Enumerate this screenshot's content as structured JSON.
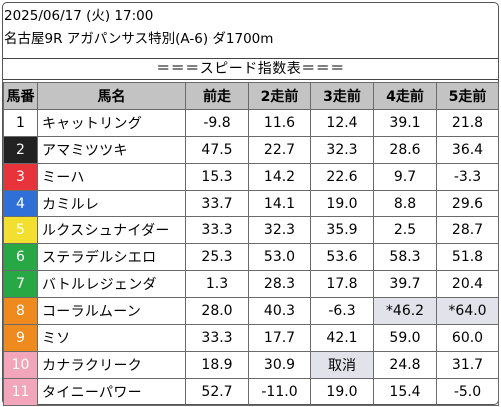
{
  "header": {
    "date_line": "2025/06/17 (火) 17:00",
    "race_line": "名古屋9R アガパンサス特別(A-6) ダ1700m",
    "banner": "＝＝＝スピード指数表＝＝＝"
  },
  "table": {
    "columns": [
      "馬番",
      "馬名",
      "前走",
      "2走前",
      "3走前",
      "4走前",
      "5走前"
    ],
    "rows": [
      {
        "num": "1",
        "name": "キャットリング",
        "r1": "-9.8",
        "r2": "11.6",
        "r3": "12.4",
        "r4": "39.1",
        "r5": "21.8"
      },
      {
        "num": "2",
        "name": "アマミツツキ",
        "r1": "47.5",
        "r2": "22.7",
        "r3": "32.3",
        "r4": "28.6",
        "r5": "36.4"
      },
      {
        "num": "3",
        "name": "ミーハ",
        "r1": "15.3",
        "r2": "14.2",
        "r3": "22.6",
        "r4": "9.7",
        "r5": "-3.3"
      },
      {
        "num": "4",
        "name": "カミルレ",
        "r1": "33.7",
        "r2": "14.1",
        "r3": "19.0",
        "r4": "8.8",
        "r5": "29.6"
      },
      {
        "num": "5",
        "name": "ルクスシュナイダー",
        "r1": "33.3",
        "r2": "32.3",
        "r3": "35.9",
        "r4": "2.5",
        "r5": "28.7"
      },
      {
        "num": "6",
        "name": "ステラデルシエロ",
        "r1": "25.3",
        "r2": "53.0",
        "r3": "53.6",
        "r4": "58.3",
        "r5": "51.8"
      },
      {
        "num": "7",
        "name": "バトルレジェンダ",
        "r1": "1.3",
        "r2": "28.3",
        "r3": "17.8",
        "r4": "39.7",
        "r5": "20.4"
      },
      {
        "num": "8",
        "name": "コーラルムーン",
        "r1": "28.0",
        "r2": "40.3",
        "r3": "-6.3",
        "r4": "*46.2",
        "r5": "*64.0"
      },
      {
        "num": "9",
        "name": "ミソ",
        "r1": "33.3",
        "r2": "17.7",
        "r3": "42.1",
        "r4": "59.0",
        "r5": "60.0"
      },
      {
        "num": "10",
        "name": "カナラクリーク",
        "r1": "18.9",
        "r2": "30.9",
        "r3": "取消",
        "r4": "24.8",
        "r5": "31.7"
      },
      {
        "num": "11",
        "name": "タイニーパワー",
        "r1": "52.7",
        "r2": "-11.0",
        "r3": "19.0",
        "r4": "15.4",
        "r5": "-5.0"
      }
    ]
  },
  "colors": {
    "header_bg": "#c3c3c3",
    "highlight_bg": "#e2e3ea",
    "waku": [
      "#ffffff",
      "#222222",
      "#e8333a",
      "#2f6fd8",
      "#f2df2e",
      "#27a844",
      "#ef8b1e",
      "#f3a6bb"
    ]
  }
}
